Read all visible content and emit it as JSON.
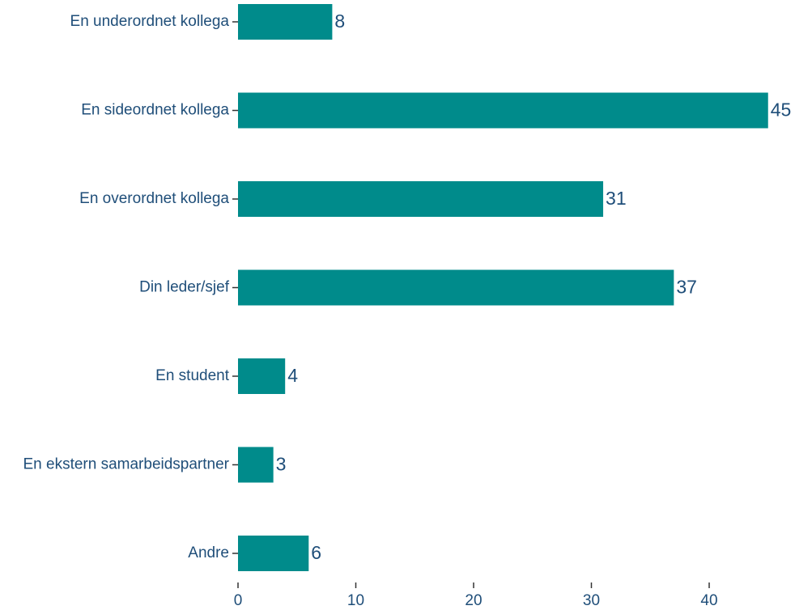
{
  "chart_data": {
    "type": "barh",
    "categories": [
      "En underordnet kollega",
      "En sideordnet kollega",
      "En overordnet kollega",
      "Din leder/sjef",
      "En student",
      "En ekstern samarbeidspartner",
      "Andre"
    ],
    "values": [
      8,
      45,
      31,
      37,
      4,
      3,
      6
    ],
    "color": "#008b8b",
    "xlim": [
      0,
      46
    ],
    "xticks": [
      0,
      10,
      20,
      30,
      40
    ],
    "grid": false
  }
}
